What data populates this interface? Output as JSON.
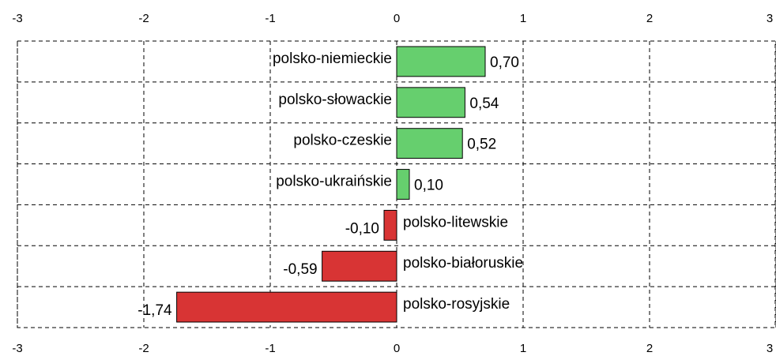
{
  "chart_data": {
    "type": "barh",
    "categories": [
      "polsko-niemieckie",
      "polsko-słowackie",
      "polsko-czeskie",
      "polsko-ukraińskie",
      "polsko-litewskie",
      "polsko-białoruskie",
      "polsko-rosyjskie"
    ],
    "values": [
      0.7,
      0.54,
      0.52,
      0.1,
      -0.1,
      -0.59,
      -1.74
    ],
    "value_labels": [
      "0,70",
      "0,54",
      "0,52",
      "0,10",
      "-0,10",
      "-0,59",
      "-1,74"
    ],
    "colors": [
      "#66cf6e",
      "#66cf6e",
      "#66cf6e",
      "#66cf6e",
      "#d83434",
      "#d83434",
      "#d83434"
    ],
    "xlim": [
      -3,
      3
    ],
    "xticks": [
      -3,
      -2,
      -1,
      0,
      1,
      2,
      3
    ],
    "grid": true
  }
}
